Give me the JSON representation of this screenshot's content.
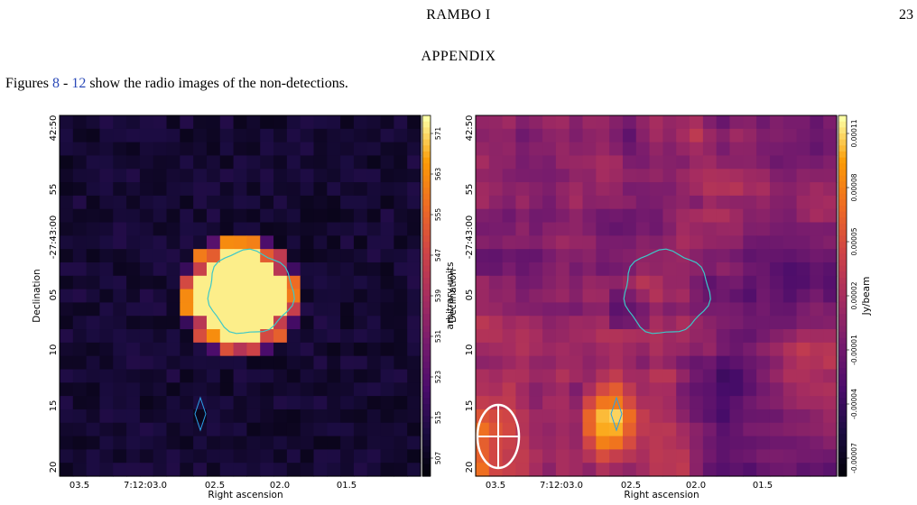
{
  "header": {
    "title": "RAMBO I",
    "page_number": "23"
  },
  "section": {
    "heading": "APPENDIX"
  },
  "paragraph": {
    "prefix": "Figures ",
    "ref_start": "8",
    "sep": " - ",
    "ref_end": "12",
    "suffix": " show the radio images of the non-detections."
  },
  "figures": [
    {
      "panel": "left",
      "xlabel": "Right ascension",
      "ylabel": "Declination",
      "x_ticks": [
        "03.5",
        "7:12:03.0",
        "02.5",
        "02.0",
        "01.5"
      ],
      "y_ticks": [
        "42:50",
        "55",
        "-27:43:00",
        "05",
        "10",
        "15",
        "20"
      ],
      "colorbar_label": "arbitrary units",
      "colorbar_ticks": [
        "571",
        "563",
        "555",
        "547",
        "539",
        "531",
        "523",
        "515",
        "507"
      ],
      "colormap": "inferno"
    },
    {
      "panel": "right",
      "xlabel": "Right ascension",
      "ylabel": "Declination",
      "x_ticks": [
        "03.5",
        "7:12:03.0",
        "02.5",
        "02.0",
        "01.5"
      ],
      "y_ticks": [
        "42:50",
        "55",
        "-27:43:00",
        "05",
        "10",
        "15",
        "20"
      ],
      "colorbar_label": "Jy/beam",
      "colorbar_ticks": [
        "0.00011",
        "0.00008",
        "0.00005",
        "0.00002",
        "-0.00001",
        "-0.00004",
        "-0.00007"
      ],
      "colormap": "inferno"
    }
  ],
  "colors": {
    "link": "#2a49b8",
    "aperture_contour": "#3cc8c8",
    "source_marker": "#2aa0e8",
    "beam": "#ffffff"
  }
}
